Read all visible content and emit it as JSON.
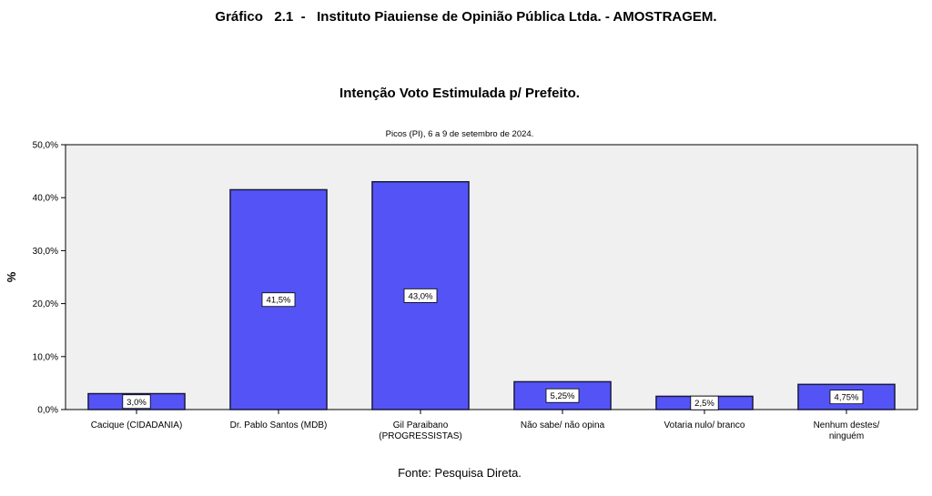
{
  "header": {
    "title": "Gráfico   2.1  -   Instituto Piauiense de Opinião Pública Ltda. - AMOSTRAGEM."
  },
  "footer": {
    "source": "Fonte: Pesquisa Direta."
  },
  "chart_data": {
    "type": "bar",
    "title": "Intenção Voto Estimulada p/ Prefeito.",
    "subtitle": "Picos (PI), 6 a 9 de setembro de 2024.",
    "xlabel": "",
    "ylabel": "%",
    "ylim": [
      0,
      50
    ],
    "yticks": [
      "0,0%",
      "10,0%",
      "20,0%",
      "30,0%",
      "40,0%",
      "50,0%"
    ],
    "grid": false,
    "categories": [
      [
        "Cacique (CIDADANIA)"
      ],
      [
        "Dr. Pablo Santos (MDB)"
      ],
      [
        "Gil Paraibano",
        "(PROGRESSISTAS)"
      ],
      [
        "Não sabe/ não opina"
      ],
      [
        "Votaria nulo/ branco"
      ],
      [
        "Nenhum destes/",
        "ninguém"
      ]
    ],
    "values": [
      3.0,
      41.5,
      43.0,
      5.25,
      2.5,
      4.75
    ],
    "data_labels": [
      "3,0%",
      "41,5%",
      "43,0%",
      "5,25%",
      "2,5%",
      "4,75%"
    ],
    "colors": {
      "bar": "#5454f6",
      "plot_background": "#f0f0f0",
      "bar_edge": "#1a1a40"
    }
  }
}
